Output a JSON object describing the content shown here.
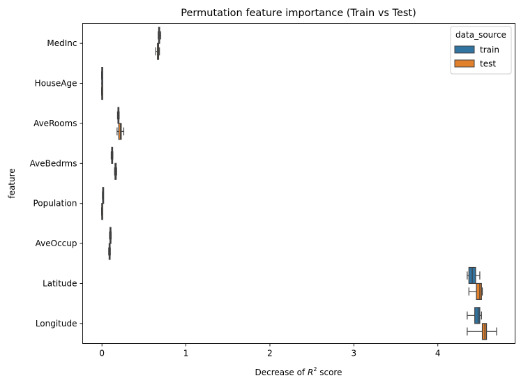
{
  "chart_data": {
    "type": "boxplot",
    "orientation": "horizontal",
    "title": "Permutation feature importance (Train vs Test)",
    "xlabel_prefix": "Decrease of ",
    "xlabel_math": "R",
    "xlabel_sup": "2",
    "xlabel_suffix": " score",
    "ylabel": "feature",
    "xlim": [
      -0.23,
      4.92
    ],
    "xticks": [
      0,
      1,
      2,
      3,
      4
    ],
    "categories": [
      "MedInc",
      "HouseAge",
      "AveRooms",
      "AveBedrms",
      "Population",
      "AveOccup",
      "Latitude",
      "Longitude"
    ],
    "legend": {
      "title": "data_source",
      "position": "top-right"
    },
    "series": [
      {
        "name": "train",
        "color": "#3274a1",
        "boxes": [
          {
            "whislo": 0.67,
            "q1": 0.675,
            "med": 0.68,
            "q3": 0.685,
            "whishi": 0.7
          },
          {
            "whislo": -0.005,
            "q1": -0.003,
            "med": 0.0,
            "q3": 0.003,
            "whishi": 0.005
          },
          {
            "whislo": 0.185,
            "q1": 0.19,
            "med": 0.195,
            "q3": 0.2,
            "whishi": 0.205
          },
          {
            "whislo": 0.11,
            "q1": 0.115,
            "med": 0.12,
            "q3": 0.125,
            "whishi": 0.13
          },
          {
            "whislo": 0.005,
            "q1": 0.008,
            "med": 0.01,
            "q3": 0.012,
            "whishi": 0.015
          },
          {
            "whislo": 0.09,
            "q1": 0.095,
            "med": 0.1,
            "q3": 0.105,
            "whishi": 0.11
          },
          {
            "whislo": 4.35,
            "q1": 4.37,
            "med": 4.41,
            "q3": 4.45,
            "whishi": 4.5
          },
          {
            "whislo": 4.35,
            "q1": 4.44,
            "med": 4.48,
            "q3": 4.5,
            "whishi": 4.52
          }
        ]
      },
      {
        "name": "test",
        "color": "#e1812c",
        "boxes": [
          {
            "whislo": 0.64,
            "q1": 0.66,
            "med": 0.67,
            "q3": 0.675,
            "whishi": 0.685
          },
          {
            "whislo": -0.005,
            "q1": -0.003,
            "med": 0.0,
            "q3": 0.003,
            "whishi": 0.005
          },
          {
            "whislo": 0.18,
            "q1": 0.2,
            "med": 0.22,
            "q3": 0.23,
            "whishi": 0.26
          },
          {
            "whislo": 0.15,
            "q1": 0.155,
            "med": 0.16,
            "q3": 0.17,
            "whishi": 0.175
          },
          {
            "whislo": -0.005,
            "q1": -0.003,
            "med": 0.0,
            "q3": 0.003,
            "whishi": 0.005
          },
          {
            "whislo": 0.08,
            "q1": 0.085,
            "med": 0.09,
            "q3": 0.095,
            "whishi": 0.1
          },
          {
            "whislo": 4.37,
            "q1": 4.46,
            "med": 4.5,
            "q3": 4.52,
            "whishi": 4.53
          },
          {
            "whislo": 4.35,
            "q1": 4.53,
            "med": 4.56,
            "q3": 4.58,
            "whishi": 4.7
          }
        ]
      }
    ]
  }
}
